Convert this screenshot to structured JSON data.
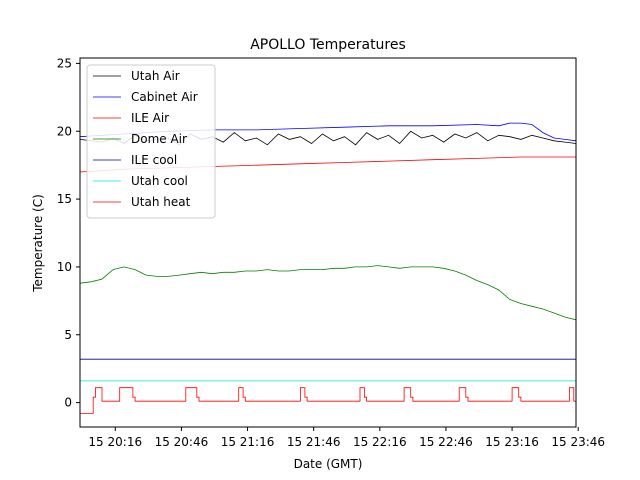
{
  "chart_data": {
    "type": "line",
    "title": "APOLLO Temperatures",
    "xlabel": "Date (GMT)",
    "ylabel": "Temperature (C)",
    "xlim": [
      1200,
      1425
    ],
    "ylim": [
      -1.8,
      25.4
    ],
    "yticks": [
      0,
      5,
      10,
      15,
      20,
      25
    ],
    "xticks": [
      {
        "value": 1216,
        "label": "15 20:16"
      },
      {
        "value": 1246,
        "label": "15 20:46"
      },
      {
        "value": 1276,
        "label": "15 21:16"
      },
      {
        "value": 1306,
        "label": "15 21:46"
      },
      {
        "value": 1336,
        "label": "15 22:16"
      },
      {
        "value": 1366,
        "label": "15 22:46"
      },
      {
        "value": 1396,
        "label": "15 23:16"
      },
      {
        "value": 1426,
        "label": "15 23:46"
      }
    ],
    "legend_position": "top-left",
    "series": [
      {
        "name": "Utah Air",
        "color": "#000000",
        "x": [
          1200,
          1210,
          1215,
          1220,
          1225,
          1230,
          1240,
          1245,
          1250,
          1255,
          1260,
          1265,
          1270,
          1275,
          1280,
          1285,
          1290,
          1295,
          1300,
          1305,
          1310,
          1315,
          1320,
          1325,
          1330,
          1335,
          1340,
          1345,
          1350,
          1355,
          1360,
          1365,
          1370,
          1375,
          1380,
          1385,
          1390,
          1395,
          1400,
          1405,
          1410,
          1415,
          1420,
          1425
        ],
        "y": [
          19.4,
          19.2,
          19.5,
          19.1,
          19.7,
          19.3,
          19.5,
          19.0,
          19.8,
          19.4,
          19.6,
          19.2,
          19.9,
          19.3,
          19.5,
          19.0,
          19.8,
          19.4,
          19.6,
          19.1,
          19.8,
          19.3,
          19.6,
          19.0,
          19.9,
          19.4,
          19.7,
          19.1,
          20.0,
          19.5,
          19.7,
          19.2,
          19.8,
          19.5,
          19.9,
          19.3,
          19.7,
          19.6,
          19.4,
          19.7,
          19.5,
          19.3,
          19.2,
          19.1
        ]
      },
      {
        "name": "Cabinet Air",
        "color": "#0000ff",
        "x": [
          1200,
          1220,
          1240,
          1260,
          1280,
          1300,
          1320,
          1340,
          1360,
          1380,
          1390,
          1395,
          1400,
          1405,
          1410,
          1415,
          1420,
          1425
        ],
        "y": [
          19.6,
          19.8,
          20.0,
          20.1,
          20.1,
          20.2,
          20.3,
          20.4,
          20.4,
          20.5,
          20.4,
          20.6,
          20.6,
          20.5,
          19.9,
          19.5,
          19.4,
          19.3
        ]
      },
      {
        "name": "ILE Air",
        "color": "#ff0000",
        "x": [
          1200,
          1220,
          1240,
          1260,
          1280,
          1300,
          1320,
          1340,
          1360,
          1380,
          1400,
          1425
        ],
        "y": [
          17.0,
          17.2,
          17.3,
          17.4,
          17.5,
          17.6,
          17.7,
          17.8,
          17.9,
          18.0,
          18.1,
          18.1
        ]
      },
      {
        "name": "Dome Air",
        "color": "#008000",
        "x": [
          1200,
          1205,
          1210,
          1215,
          1220,
          1225,
          1230,
          1235,
          1240,
          1245,
          1250,
          1255,
          1260,
          1265,
          1270,
          1275,
          1280,
          1285,
          1290,
          1295,
          1300,
          1305,
          1310,
          1315,
          1320,
          1325,
          1330,
          1335,
          1340,
          1345,
          1350,
          1355,
          1360,
          1365,
          1370,
          1375,
          1380,
          1385,
          1390,
          1395,
          1400,
          1405,
          1410,
          1415,
          1420,
          1425
        ],
        "y": [
          8.8,
          8.9,
          9.1,
          9.8,
          10.0,
          9.8,
          9.4,
          9.3,
          9.3,
          9.4,
          9.5,
          9.6,
          9.5,
          9.6,
          9.6,
          9.7,
          9.7,
          9.8,
          9.7,
          9.7,
          9.8,
          9.8,
          9.8,
          9.9,
          9.9,
          10.0,
          10.0,
          10.1,
          10.0,
          9.9,
          10.0,
          10.0,
          10.0,
          9.9,
          9.7,
          9.4,
          9.0,
          8.7,
          8.3,
          7.6,
          7.3,
          7.1,
          6.9,
          6.6,
          6.3,
          6.1
        ]
      },
      {
        "name": "ILE cool",
        "color": "#00008b",
        "x": [
          1200,
          1425
        ],
        "y": [
          3.2,
          3.2
        ]
      },
      {
        "name": "Utah cool",
        "color": "#00e5e5",
        "x": [
          1200,
          1425
        ],
        "y": [
          1.6,
          1.6
        ]
      },
      {
        "name": "Utah heat",
        "color": "#ff0000",
        "x": [
          1200,
          1206,
          1206,
          1207,
          1207,
          1210,
          1210,
          1218,
          1218,
          1224,
          1224,
          1225,
          1225,
          1248,
          1248,
          1253,
          1253,
          1254,
          1254,
          1272,
          1272,
          1274,
          1274,
          1275,
          1275,
          1300,
          1300,
          1302,
          1302,
          1303,
          1303,
          1327,
          1327,
          1329,
          1329,
          1330,
          1330,
          1347,
          1347,
          1350,
          1350,
          1351,
          1351,
          1372,
          1372,
          1375,
          1375,
          1376,
          1376,
          1396,
          1396,
          1399,
          1399,
          1400,
          1400,
          1422,
          1422,
          1424,
          1424,
          1425
        ],
        "y": [
          -0.8,
          -0.8,
          0.4,
          0.4,
          1.1,
          1.1,
          0.1,
          0.1,
          1.1,
          1.1,
          0.4,
          0.4,
          0.1,
          0.1,
          1.1,
          1.1,
          0.4,
          0.4,
          0.1,
          0.1,
          1.1,
          1.1,
          0.4,
          0.4,
          0.1,
          0.1,
          1.1,
          1.1,
          0.4,
          0.4,
          0.1,
          0.1,
          1.1,
          1.1,
          0.4,
          0.4,
          0.1,
          0.1,
          1.1,
          1.1,
          0.4,
          0.4,
          0.1,
          0.1,
          1.1,
          1.1,
          0.4,
          0.4,
          0.1,
          0.1,
          1.1,
          1.1,
          0.4,
          0.4,
          0.1,
          0.1,
          1.1,
          1.1,
          0.1,
          0.1
        ]
      }
    ]
  }
}
